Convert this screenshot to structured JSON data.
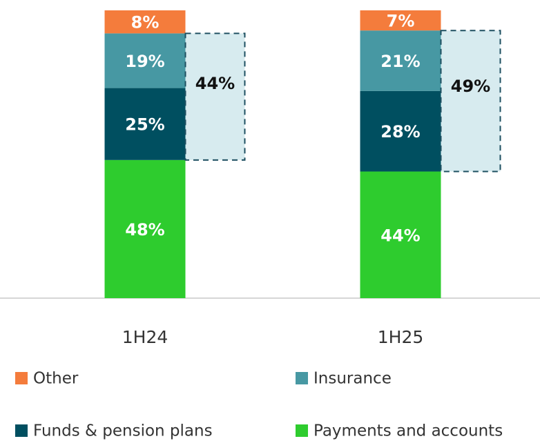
{
  "chart_data": {
    "type": "bar",
    "stacked": true,
    "categories": [
      "1H24",
      "1H25"
    ],
    "series": [
      {
        "name": "Payments and accounts",
        "color": "#2ecc2e",
        "values": [
          48,
          44
        ],
        "value_labels": [
          "48%",
          "44%"
        ]
      },
      {
        "name": "Funds & pension plans",
        "color": "#004f60",
        "values": [
          25,
          28
        ],
        "value_labels": [
          "25%",
          "28%"
        ]
      },
      {
        "name": "Insurance",
        "color": "#4798a3",
        "values": [
          19,
          21
        ],
        "value_labels": [
          "19%",
          "21%"
        ]
      },
      {
        "name": "Other",
        "color": "#f47c3c",
        "values": [
          8,
          7
        ],
        "value_labels": [
          "8%",
          "7%"
        ]
      }
    ],
    "bracket": {
      "values": [
        44,
        49
      ],
      "value_labels": [
        "44%",
        "49%"
      ]
    },
    "ylim": [
      0,
      100
    ]
  }
}
